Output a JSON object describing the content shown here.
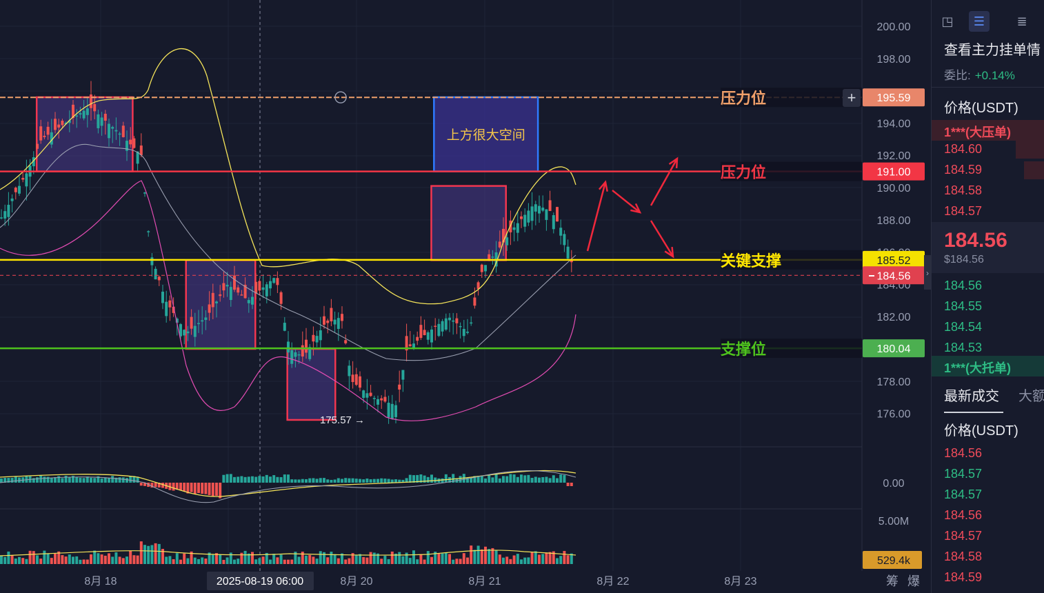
{
  "chart_data": {
    "type": "candlestick",
    "price_ticks": [
      "200.00",
      "198.00",
      "195.59",
      "194.00",
      "192.00",
      "191.00",
      "190.00",
      "188.00",
      "186.00",
      "185.52",
      "184.56",
      "184.00",
      "182.00",
      "180.04",
      "178.00",
      "176.00"
    ],
    "macd_tick": "0.00",
    "volume_tick": "5.00M",
    "volume_tag": "529.4k",
    "x_labels": [
      "8月 18",
      "8月 20",
      "8月 21",
      "8月 22",
      "8月 23"
    ],
    "crosshair_label": "2025-08-19 06:00",
    "low_marker": "175.57 →",
    "ylim": [
      175.5,
      200.5
    ],
    "price_tags": [
      {
        "value": 195.59,
        "label": "195.59",
        "color": "#e8866a"
      },
      {
        "value": 191.0,
        "label": "191.00",
        "color": "#f23645"
      },
      {
        "value": 185.52,
        "label": "185.52",
        "color": "#f5e100"
      },
      {
        "value": 184.56,
        "label": "184.56",
        "color": "#e0414f"
      },
      {
        "value": 180.04,
        "label": "180.04",
        "color": "#4caf50"
      }
    ],
    "levels": [
      {
        "label": "压力位",
        "value": 195.59,
        "color": "#f0a06a"
      },
      {
        "label": "压力位",
        "value": 191.0,
        "color": "#f23645"
      },
      {
        "label": "关键支撑",
        "value": 185.52,
        "color": "#ffe600"
      },
      {
        "label": "支撑位",
        "value": 180.04,
        "color": "#4ec21d"
      }
    ],
    "zones": [
      {
        "x0": "8-18 00:00",
        "x1": "8-18 18:00",
        "y0": 191.0,
        "y1": 195.6
      },
      {
        "x0": "8-19 04:00",
        "x1": "8-19 17:00",
        "y0": 180.0,
        "y1": 185.5
      },
      {
        "x0": "8-19 23:00",
        "x1": "8-20 08:00",
        "y0": 175.6,
        "y1": 180.0
      },
      {
        "x0": "8-21 02:00",
        "x1": "8-21 16:00",
        "y0": 185.5,
        "y1": 190.1
      }
    ],
    "target_box": {
      "label": "上方很大空间",
      "x0": "8-21 02:30",
      "x1": "8-21 22:00",
      "y0": 191.0,
      "y1": 195.6
    },
    "bottom_right_labels": [
      "筹",
      "爆"
    ]
  },
  "order_book": {
    "title": "查看主力挂单情",
    "ratio_label": "委比:",
    "ratio_value": "+0.14%",
    "price_header": "价格(USDT)",
    "big_ask_label": "1***(大压单)",
    "asks": [
      "184.60",
      "184.59",
      "184.58",
      "184.57"
    ],
    "last_price": "184.56",
    "last_price_usd": "$184.56",
    "bids": [
      "184.56",
      "184.55",
      "184.54",
      "184.53"
    ],
    "big_bid_label": "1***(大托单)",
    "tab_latest": "最新成交",
    "tab_big": "大额",
    "trades_header": "价格(USDT)",
    "trades": [
      {
        "p": "184.56",
        "c": "red"
      },
      {
        "p": "184.57",
        "c": "green"
      },
      {
        "p": "184.57",
        "c": "green"
      },
      {
        "p": "184.56",
        "c": "red"
      },
      {
        "p": "184.57",
        "c": "red"
      },
      {
        "p": "184.58",
        "c": "red"
      },
      {
        "p": "184.59",
        "c": "red"
      }
    ]
  }
}
